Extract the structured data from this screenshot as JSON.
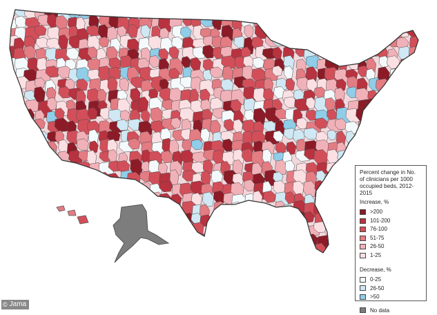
{
  "map": {
    "land_color": "#f2d8dc",
    "border_color": "#ffffff",
    "alaska_color": "#7d7d7d"
  },
  "legend": {
    "title": "Percent change in No. of clinicians per 1000 occupied beds, 2012-2015",
    "increase_heading": "Increase, %",
    "increase_items": [
      {
        "label": ">200",
        "color": "#8c1b27"
      },
      {
        "label": "101-200",
        "color": "#b9323f"
      },
      {
        "label": "76-100",
        "color": "#d24f5a"
      },
      {
        "label": "51-75",
        "color": "#e47c83"
      },
      {
        "label": "26-50",
        "color": "#f1b1b8"
      },
      {
        "label": "1-25",
        "color": "#fbe0e3"
      }
    ],
    "decrease_heading": "Decrease, %",
    "decrease_items": [
      {
        "label": "0-25",
        "color": "#f4fafc"
      },
      {
        "label": "26-50",
        "color": "#cfe8f3"
      },
      {
        "label": ">50",
        "color": "#8fcde9"
      }
    ],
    "no_data": {
      "label": "No data",
      "color": "#7d7d7d"
    }
  },
  "credit": {
    "icon": "copyright-icon",
    "text": "Jama"
  }
}
